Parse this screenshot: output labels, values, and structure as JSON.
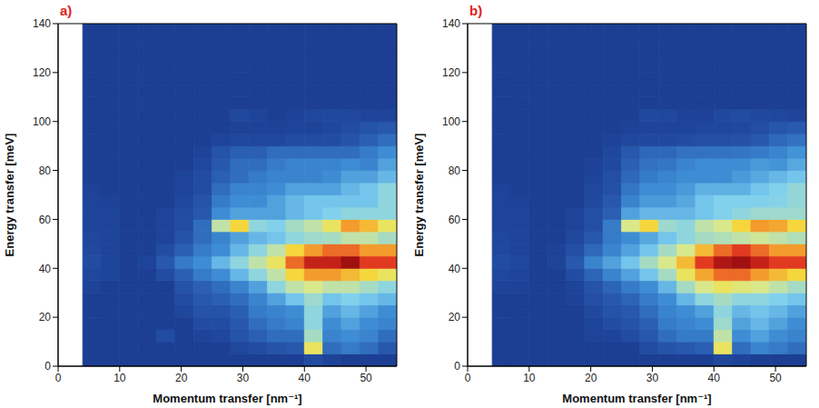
{
  "chart_data": [
    {
      "type": "heatmap",
      "title": "a)",
      "x_label": "Momentum transfer [nm⁻¹]",
      "y_label": "Energy transfer [meV]",
      "xlim": [
        0,
        55
      ],
      "ylim": [
        0,
        140
      ],
      "xticks": [
        0,
        10,
        20,
        30,
        40,
        50
      ],
      "yticks": [
        0,
        20,
        40,
        60,
        80,
        100,
        120,
        140
      ],
      "grid": false,
      "x_edges": [
        4,
        7,
        10,
        13,
        16,
        19,
        22,
        25,
        28,
        31,
        34,
        37,
        40,
        43,
        46,
        49,
        52,
        55
      ],
      "y_edges": [
        0,
        5,
        10,
        15,
        20,
        25,
        30,
        35,
        40,
        45,
        50,
        55,
        60,
        65,
        70,
        75,
        80,
        85,
        90,
        95,
        100,
        105,
        110,
        115,
        120,
        125,
        130,
        135,
        140
      ],
      "cells": [
        [
          1,
          1,
          1,
          1,
          1,
          1,
          1,
          1,
          1,
          1,
          1,
          1,
          1.5,
          1.2,
          1,
          1,
          1
        ],
        [
          1,
          1,
          1,
          1,
          1,
          1,
          1,
          1,
          1.3,
          1.5,
          1.8,
          2,
          6.5,
          2.5,
          2.8,
          2.5,
          2
        ],
        [
          1,
          1,
          1,
          1,
          1.5,
          1,
          1.2,
          1.3,
          1.8,
          2.2,
          2.5,
          2.5,
          5,
          3,
          3.2,
          3,
          2.5
        ],
        [
          1,
          1,
          1,
          1,
          1,
          1,
          1.5,
          1.5,
          2,
          2.5,
          2.8,
          3,
          4.5,
          3.2,
          3.5,
          3.2,
          3
        ],
        [
          1,
          1,
          1,
          1,
          1,
          1.3,
          1.8,
          1.8,
          2.2,
          2.8,
          3,
          3.2,
          4.5,
          3.5,
          3.8,
          3.5,
          3.2
        ],
        [
          1,
          1,
          1,
          1,
          1,
          1.5,
          2,
          2.2,
          2.5,
          3,
          3.5,
          4,
          4.8,
          4,
          4.2,
          4,
          3.8
        ],
        [
          1.2,
          1,
          1,
          1,
          1,
          1.8,
          2.2,
          2.5,
          3,
          3.5,
          4.5,
          5.5,
          6,
          5.5,
          5.5,
          5,
          4.5
        ],
        [
          1.3,
          1.2,
          1,
          1,
          1.5,
          2.2,
          2.8,
          3.2,
          3.8,
          4.5,
          5.5,
          7,
          8,
          8,
          7.5,
          7,
          6.5
        ],
        [
          1.5,
          1.2,
          1,
          1.2,
          2,
          2.8,
          3.2,
          3.8,
          4.5,
          5.5,
          6.5,
          8.5,
          9.5,
          9.5,
          10,
          9,
          9
        ],
        [
          1.4,
          1.2,
          1,
          1,
          1.5,
          2.2,
          2.8,
          3.2,
          3.8,
          4.5,
          5.5,
          7,
          8,
          8.5,
          8.5,
          8,
          8
        ],
        [
          1.3,
          1.2,
          1,
          1,
          1.2,
          1.8,
          2.5,
          3,
          3.5,
          3.8,
          4,
          4.5,
          4.8,
          5,
          5.5,
          5.5,
          5
        ],
        [
          1.2,
          1.2,
          1,
          1,
          1.2,
          1.5,
          2.5,
          5.5,
          7,
          4.5,
          4.2,
          5,
          5.5,
          6.5,
          8,
          7.5,
          6.5
        ],
        [
          1.2,
          1.2,
          1,
          1,
          1.2,
          1.5,
          2,
          3.2,
          3.5,
          3.5,
          3.5,
          3.8,
          4,
          4.2,
          4.5,
          4.5,
          4.5
        ],
        [
          1.2,
          1.1,
          1,
          1,
          1,
          1.3,
          1.8,
          2.8,
          3.2,
          3.2,
          3.5,
          3.8,
          4,
          4,
          4,
          4,
          4.5
        ],
        [
          1.1,
          1,
          1,
          1,
          1,
          1.2,
          1.5,
          2.5,
          3,
          3,
          3.2,
          3.5,
          3.5,
          3.5,
          3.8,
          4,
          4.5
        ],
        [
          1,
          1,
          1,
          1,
          1,
          1.2,
          1.5,
          2.2,
          2.5,
          2.8,
          3,
          3,
          3,
          3.2,
          3.5,
          3.5,
          3.8
        ],
        [
          1,
          1,
          1,
          1,
          1,
          1,
          1.3,
          2,
          2.5,
          2.5,
          2.8,
          3,
          3,
          3,
          3.2,
          3,
          3.5
        ],
        [
          1,
          1,
          1,
          1,
          1,
          1,
          1.2,
          1.8,
          2.2,
          2.2,
          2.5,
          2.5,
          2.5,
          2.5,
          2.5,
          2.8,
          3.2
        ],
        [
          1,
          1,
          1,
          1,
          1,
          1,
          1,
          1.2,
          1.3,
          1.3,
          1.3,
          1.5,
          1.5,
          1.5,
          1.8,
          2.2,
          2.5
        ],
        [
          1,
          1,
          1,
          1,
          1,
          1,
          1,
          1,
          1.1,
          1.1,
          1.1,
          1.2,
          1.2,
          1.3,
          1.5,
          1.8,
          2
        ],
        [
          1,
          1,
          1,
          1,
          1,
          1,
          1,
          1,
          1.4,
          1.2,
          1,
          1.1,
          1.3,
          1.4,
          1.3,
          1.2,
          1.2
        ],
        [
          1,
          1,
          1,
          1,
          1,
          1,
          1,
          1,
          1,
          1,
          1,
          1,
          1,
          1,
          1,
          1,
          1
        ],
        [
          1,
          1,
          1,
          1,
          1,
          1,
          1,
          1,
          1,
          1,
          1,
          1,
          1,
          1,
          1,
          1,
          1
        ],
        [
          1,
          1,
          1,
          1,
          1,
          1,
          1,
          1,
          1,
          1,
          1,
          1,
          1,
          1,
          1,
          1,
          1
        ],
        [
          1,
          1,
          1,
          1,
          1,
          1,
          1,
          1,
          1,
          1,
          1,
          1,
          1,
          1,
          1,
          1,
          1
        ],
        [
          1,
          1,
          1,
          1,
          1,
          1,
          1,
          1,
          1,
          1,
          1,
          1,
          1,
          1,
          1,
          1,
          1
        ],
        [
          1,
          1,
          1,
          1,
          1,
          1,
          1,
          1,
          1,
          1,
          1,
          1,
          1,
          1,
          1,
          1,
          1
        ],
        [
          1,
          1,
          1,
          1,
          1,
          1,
          1,
          1,
          1,
          1,
          1,
          1,
          1,
          1,
          1,
          1,
          1
        ]
      ]
    },
    {
      "type": "heatmap",
      "title": "b)",
      "x_label": "Momentum transfer [nm⁻¹]",
      "y_label": "Energy transfer [meV]",
      "xlim": [
        0,
        55
      ],
      "ylim": [
        0,
        140
      ],
      "xticks": [
        0,
        10,
        20,
        30,
        40,
        50
      ],
      "yticks": [
        0,
        20,
        40,
        60,
        80,
        100,
        120,
        140
      ],
      "grid": false,
      "x_edges": [
        4,
        7,
        10,
        13,
        16,
        19,
        22,
        25,
        28,
        31,
        34,
        37,
        40,
        43,
        46,
        49,
        52,
        55
      ],
      "y_edges": [
        0,
        5,
        10,
        15,
        20,
        25,
        30,
        35,
        40,
        45,
        50,
        55,
        60,
        65,
        70,
        75,
        80,
        85,
        90,
        95,
        100,
        105,
        110,
        115,
        120,
        125,
        130,
        135,
        140
      ],
      "cells": [
        [
          1,
          1,
          1,
          1,
          1,
          1,
          1,
          1,
          1,
          1,
          1,
          1,
          1.3,
          1.2,
          1,
          1,
          1
        ],
        [
          1,
          1,
          1,
          1,
          1,
          1,
          1,
          1,
          1.5,
          1.8,
          2,
          2.2,
          6.5,
          2.5,
          3,
          2.8,
          2.5
        ],
        [
          1,
          1,
          1,
          1,
          1,
          1.2,
          1.2,
          1.5,
          2,
          2.5,
          2.8,
          2.8,
          5.5,
          3.2,
          3.5,
          3.2,
          3
        ],
        [
          1,
          1,
          1,
          1,
          1,
          1.2,
          1.5,
          1.8,
          2.2,
          2.8,
          3,
          3.2,
          4.8,
          3.5,
          3.8,
          3.5,
          3.2
        ],
        [
          1,
          1,
          1,
          1,
          1,
          1.4,
          1.8,
          2,
          2.5,
          3,
          3.2,
          3.5,
          4.5,
          3.8,
          4,
          3.8,
          3.5
        ],
        [
          1,
          1,
          1,
          1,
          1.1,
          1.6,
          2,
          2.3,
          2.8,
          3.2,
          3.8,
          4.5,
          5,
          4.5,
          4.5,
          4.2,
          4
        ],
        [
          1.2,
          1.1,
          1,
          1,
          1.2,
          1.8,
          2.3,
          2.8,
          3.2,
          3.8,
          5,
          6,
          6.5,
          6.2,
          6,
          5.5,
          5
        ],
        [
          1.3,
          1.2,
          1,
          1,
          1.5,
          2.3,
          3,
          3.5,
          4,
          5,
          6.5,
          7.8,
          8.5,
          8.5,
          8,
          7.5,
          7
        ],
        [
          1.5,
          1.3,
          1,
          1.2,
          2,
          3,
          3.5,
          4,
          5,
          6,
          7.5,
          9,
          9.8,
          10,
          9.5,
          9,
          9
        ],
        [
          1.4,
          1.2,
          1,
          1.1,
          1.6,
          2.4,
          3,
          3.5,
          4,
          5,
          6,
          7.5,
          8.5,
          9,
          8.5,
          8,
          8
        ],
        [
          1.3,
          1.2,
          1,
          1,
          1.3,
          2,
          2.8,
          3.2,
          3.6,
          4,
          4.5,
          5,
          5.2,
          5.5,
          5.8,
          5.5,
          5.2
        ],
        [
          1.2,
          1.2,
          1,
          1,
          1.2,
          1.6,
          2.8,
          6,
          7,
          4.8,
          4.5,
          5.5,
          6,
          7,
          8,
          7.8,
          7
        ],
        [
          1.2,
          1.2,
          1,
          1,
          1.2,
          1.6,
          2.2,
          3.5,
          3.8,
          3.8,
          3.8,
          4,
          4.2,
          4.5,
          4.8,
          4.8,
          4.8
        ],
        [
          1.2,
          1.1,
          1,
          1,
          1,
          1.4,
          2,
          3,
          3.4,
          3.4,
          3.6,
          4,
          4.2,
          4.2,
          4.2,
          4.3,
          4.6
        ],
        [
          1.1,
          1,
          1,
          1,
          1,
          1.3,
          1.7,
          2.7,
          3.2,
          3.2,
          3.4,
          3.7,
          3.7,
          3.7,
          4,
          4.2,
          4.6
        ],
        [
          1,
          1,
          1,
          1,
          1,
          1.2,
          1.6,
          2.4,
          2.8,
          3,
          3.2,
          3.2,
          3.2,
          3.4,
          3.6,
          3.8,
          4
        ],
        [
          1,
          1,
          1,
          1,
          1,
          1.1,
          1.4,
          2.2,
          2.6,
          2.7,
          3,
          3.2,
          3.2,
          3.2,
          3.4,
          3.3,
          3.6
        ],
        [
          1,
          1,
          1,
          1,
          1,
          1,
          1.3,
          2,
          2.4,
          2.4,
          2.6,
          2.6,
          2.6,
          2.7,
          2.8,
          3,
          3.3
        ],
        [
          1,
          1,
          1,
          1,
          1,
          1,
          1.1,
          1.3,
          1.4,
          1.4,
          1.5,
          1.6,
          1.6,
          1.7,
          2,
          2.4,
          2.6
        ],
        [
          1,
          1,
          1,
          1,
          1,
          1,
          1,
          1.1,
          1.2,
          1.2,
          1.2,
          1.3,
          1.3,
          1.4,
          1.6,
          1.9,
          2.1
        ],
        [
          1,
          1,
          1,
          1,
          1,
          1,
          1,
          1,
          1.4,
          1.3,
          1.1,
          1.1,
          1.4,
          1.5,
          1.4,
          1.3,
          1.2
        ],
        [
          1,
          1,
          1,
          1,
          1,
          1,
          1,
          1,
          1,
          1,
          1,
          1,
          1,
          1,
          1,
          1,
          1
        ],
        [
          1,
          1,
          1,
          1,
          1,
          1,
          1,
          1,
          1,
          1,
          1,
          1,
          1,
          1,
          1,
          1,
          1
        ],
        [
          1,
          1,
          1,
          1,
          1,
          1,
          1,
          1,
          1,
          1,
          1,
          1,
          1,
          1,
          1,
          1,
          1
        ],
        [
          1,
          1,
          1,
          1,
          1,
          1,
          1,
          1,
          1,
          1,
          1,
          1,
          1,
          1,
          1,
          1,
          1
        ],
        [
          1,
          1,
          1,
          1,
          1,
          1,
          1,
          1,
          1,
          1,
          1,
          1,
          1,
          1,
          1,
          1,
          1
        ],
        [
          1,
          1,
          1,
          1,
          1,
          1,
          1,
          1,
          1,
          1,
          1,
          1,
          1,
          1,
          1,
          1,
          1
        ],
        [
          1,
          1,
          1,
          1,
          1,
          1,
          1,
          1,
          1,
          1,
          1,
          1,
          1,
          1,
          1,
          1,
          1
        ]
      ]
    }
  ]
}
